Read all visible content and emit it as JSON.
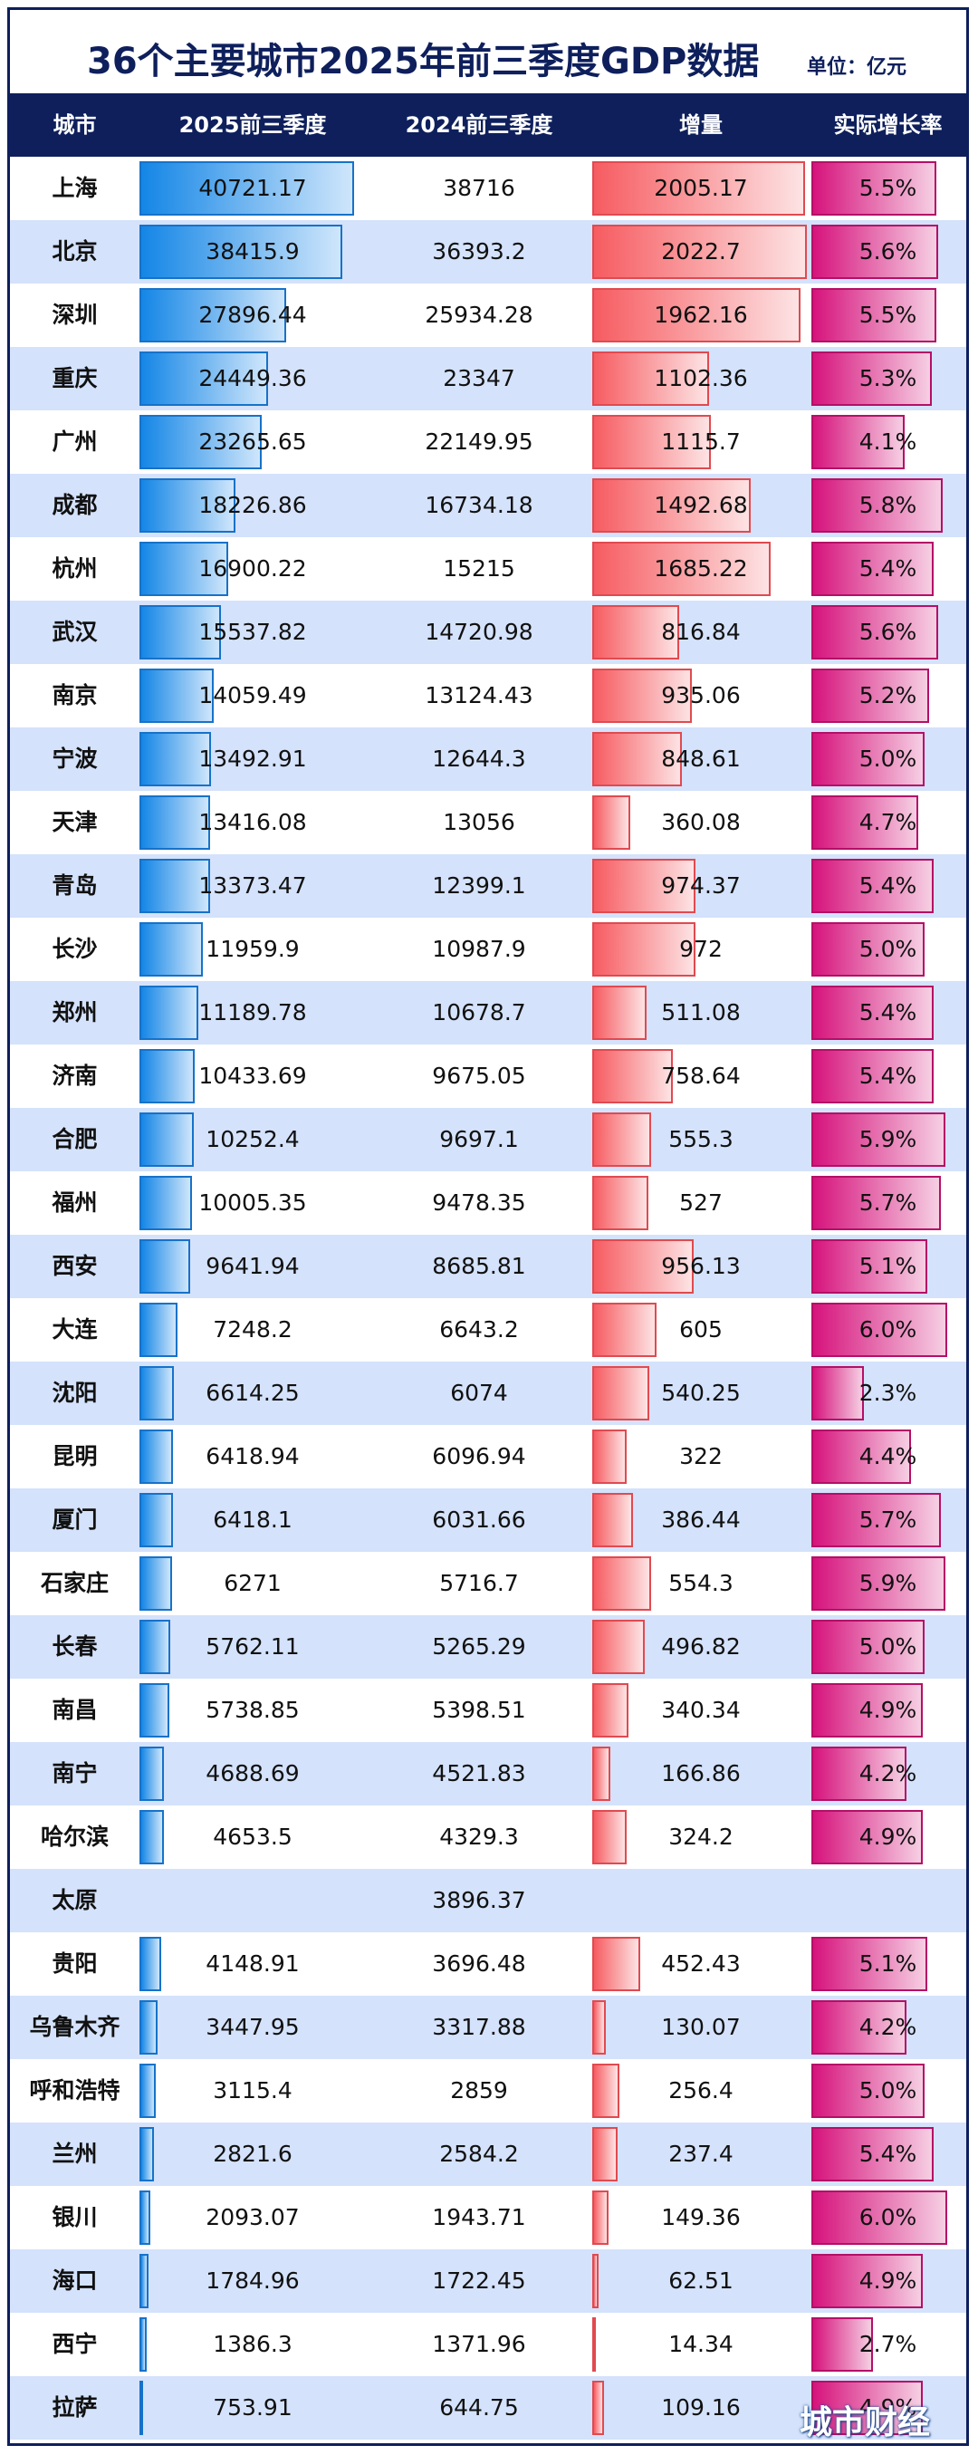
{
  "chart_data": {
    "type": "table",
    "title": "36个主要城市2025年前三季度GDP数据",
    "unit": "单位：亿元",
    "columns": [
      "城市",
      "2025前三季度",
      "2024前三季度",
      "增量",
      "实际增长率"
    ],
    "rows": [
      {
        "city": "上海",
        "gdp2025": "40721.17",
        "gdp2024": "38716",
        "increase": "2005.17",
        "growth": "5.5%"
      },
      {
        "city": "北京",
        "gdp2025": "38415.9",
        "gdp2024": "36393.2",
        "increase": "2022.7",
        "growth": "5.6%"
      },
      {
        "city": "深圳",
        "gdp2025": "27896.44",
        "gdp2024": "25934.28",
        "increase": "1962.16",
        "growth": "5.5%"
      },
      {
        "city": "重庆",
        "gdp2025": "24449.36",
        "gdp2024": "23347",
        "increase": "1102.36",
        "growth": "5.3%"
      },
      {
        "city": "广州",
        "gdp2025": "23265.65",
        "gdp2024": "22149.95",
        "increase": "1115.7",
        "growth": "4.1%"
      },
      {
        "city": "成都",
        "gdp2025": "18226.86",
        "gdp2024": "16734.18",
        "increase": "1492.68",
        "growth": "5.8%"
      },
      {
        "city": "杭州",
        "gdp2025": "16900.22",
        "gdp2024": "15215",
        "increase": "1685.22",
        "growth": "5.4%"
      },
      {
        "city": "武汉",
        "gdp2025": "15537.82",
        "gdp2024": "14720.98",
        "increase": "816.84",
        "growth": "5.6%"
      },
      {
        "city": "南京",
        "gdp2025": "14059.49",
        "gdp2024": "13124.43",
        "increase": "935.06",
        "growth": "5.2%"
      },
      {
        "city": "宁波",
        "gdp2025": "13492.91",
        "gdp2024": "12644.3",
        "increase": "848.61",
        "growth": "5.0%"
      },
      {
        "city": "天津",
        "gdp2025": "13416.08",
        "gdp2024": "13056",
        "increase": "360.08",
        "growth": "4.7%"
      },
      {
        "city": "青岛",
        "gdp2025": "13373.47",
        "gdp2024": "12399.1",
        "increase": "974.37",
        "growth": "5.4%"
      },
      {
        "city": "长沙",
        "gdp2025": "11959.9",
        "gdp2024": "10987.9",
        "increase": "972",
        "growth": "5.0%"
      },
      {
        "city": "郑州",
        "gdp2025": "11189.78",
        "gdp2024": "10678.7",
        "increase": "511.08",
        "growth": "5.4%"
      },
      {
        "city": "济南",
        "gdp2025": "10433.69",
        "gdp2024": "9675.05",
        "increase": "758.64",
        "growth": "5.4%"
      },
      {
        "city": "合肥",
        "gdp2025": "10252.4",
        "gdp2024": "9697.1",
        "increase": "555.3",
        "growth": "5.9%"
      },
      {
        "city": "福州",
        "gdp2025": "10005.35",
        "gdp2024": "9478.35",
        "increase": "527",
        "growth": "5.7%"
      },
      {
        "city": "西安",
        "gdp2025": "9641.94",
        "gdp2024": "8685.81",
        "increase": "956.13",
        "growth": "5.1%"
      },
      {
        "city": "大连",
        "gdp2025": "7248.2",
        "gdp2024": "6643.2",
        "increase": "605",
        "growth": "6.0%"
      },
      {
        "city": "沈阳",
        "gdp2025": "6614.25",
        "gdp2024": "6074",
        "increase": "540.25",
        "growth": "2.3%"
      },
      {
        "city": "昆明",
        "gdp2025": "6418.94",
        "gdp2024": "6096.94",
        "increase": "322",
        "growth": "4.4%"
      },
      {
        "city": "厦门",
        "gdp2025": "6418.1",
        "gdp2024": "6031.66",
        "increase": "386.44",
        "growth": "5.7%"
      },
      {
        "city": "石家庄",
        "gdp2025": "6271",
        "gdp2024": "5716.7",
        "increase": "554.3",
        "growth": "5.9%"
      },
      {
        "city": "长春",
        "gdp2025": "5762.11",
        "gdp2024": "5265.29",
        "increase": "496.82",
        "growth": "5.0%"
      },
      {
        "city": "南昌",
        "gdp2025": "5738.85",
        "gdp2024": "5398.51",
        "increase": "340.34",
        "growth": "4.9%"
      },
      {
        "city": "南宁",
        "gdp2025": "4688.69",
        "gdp2024": "4521.83",
        "increase": "166.86",
        "growth": "4.2%"
      },
      {
        "city": "哈尔滨",
        "gdp2025": "4653.5",
        "gdp2024": "4329.3",
        "increase": "324.2",
        "growth": "4.9%"
      },
      {
        "city": "太原",
        "gdp2025": "",
        "gdp2024": "3896.37",
        "increase": "",
        "growth": ""
      },
      {
        "city": "贵阳",
        "gdp2025": "4148.91",
        "gdp2024": "3696.48",
        "increase": "452.43",
        "growth": "5.1%"
      },
      {
        "city": "乌鲁木齐",
        "gdp2025": "3447.95",
        "gdp2024": "3317.88",
        "increase": "130.07",
        "growth": "4.2%"
      },
      {
        "city": "呼和浩特",
        "gdp2025": "3115.4",
        "gdp2024": "2859",
        "increase": "256.4",
        "growth": "5.0%"
      },
      {
        "city": "兰州",
        "gdp2025": "2821.6",
        "gdp2024": "2584.2",
        "increase": "237.4",
        "growth": "5.4%"
      },
      {
        "city": "银川",
        "gdp2025": "2093.07",
        "gdp2024": "1943.71",
        "increase": "149.36",
        "growth": "6.0%"
      },
      {
        "city": "海口",
        "gdp2025": "1784.96",
        "gdp2024": "1722.45",
        "increase": "62.51",
        "growth": "4.9%"
      },
      {
        "city": "西宁",
        "gdp2025": "1386.3",
        "gdp2024": "1371.96",
        "increase": "14.34",
        "growth": "2.7%"
      },
      {
        "city": "拉萨",
        "gdp2025": "753.91",
        "gdp2024": "644.75",
        "increase": "109.16",
        "growth": "4.9%"
      }
    ]
  },
  "colors": {
    "header_bg": "#0e1f5c",
    "row_alt": "#d4e2fb",
    "gdp_bar": "#1486e6",
    "increase_bar": "#f65c61",
    "growth_bar": "#d6137c"
  },
  "watermark": "城市财经"
}
